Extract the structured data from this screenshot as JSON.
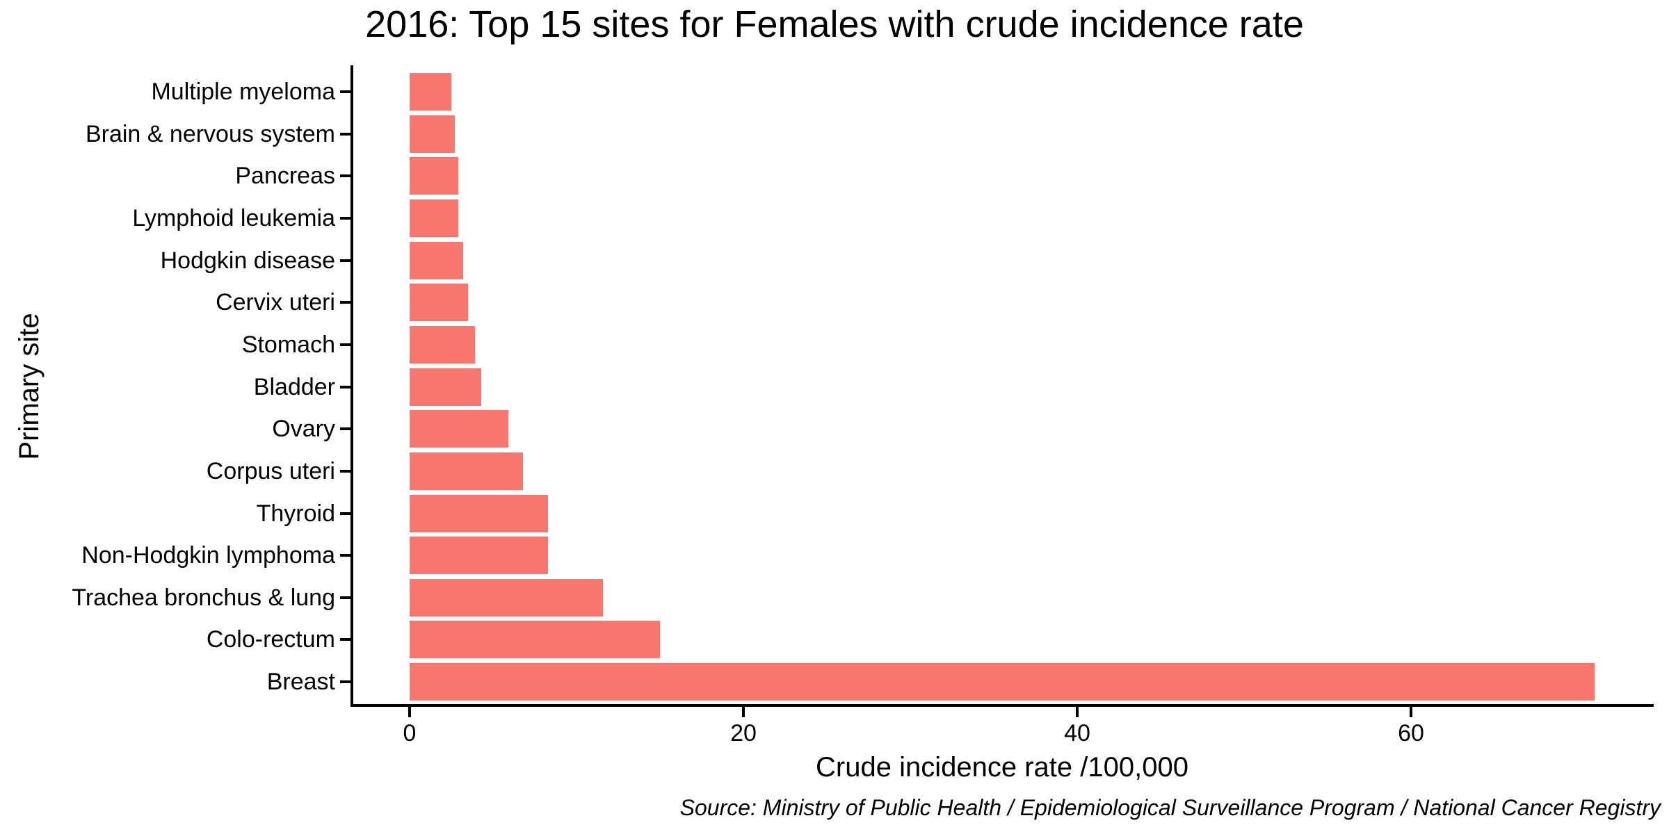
{
  "page": {
    "title": "2016: Top 15 sites for Females with crude incidence rate",
    "source_note": "Source: Ministry of Public Health / Epidemiological Surveillance Program / National Cancer Registry"
  },
  "chart_data": {
    "type": "bar",
    "orientation": "horizontal",
    "title": "2016: Top 15 sites for Females with crude incidence rate",
    "xlabel": "Crude incidence rate /100,000",
    "ylabel": "Primary site",
    "categories_top_to_bottom": [
      "Multiple myeloma",
      "Brain & nervous system",
      "Pancreas",
      "Lymphoid leukemia",
      "Hodgkin disease",
      "Cervix uteri",
      "Stomach",
      "Bladder",
      "Ovary",
      "Corpus uteri",
      "Thyroid",
      "Non-Hodgkin lymphoma",
      "Trachea bronchus & lung",
      "Colo-rectum",
      "Breast"
    ],
    "values": [
      2.5,
      2.7,
      2.9,
      2.9,
      3.2,
      3.5,
      3.9,
      4.3,
      5.9,
      6.8,
      8.3,
      8.3,
      11.6,
      15.0,
      71.0
    ],
    "xticks": [
      0,
      20,
      40,
      60
    ],
    "xlim_data": [
      0,
      71
    ],
    "grid": "off",
    "legend": "none",
    "bar_color": "#F8766D",
    "axis_color": "#000000",
    "background": "#FFFFFF",
    "source": "Source: Ministry of Public Health / Epidemiological Surveillance Program / National Cancer Registry"
  }
}
